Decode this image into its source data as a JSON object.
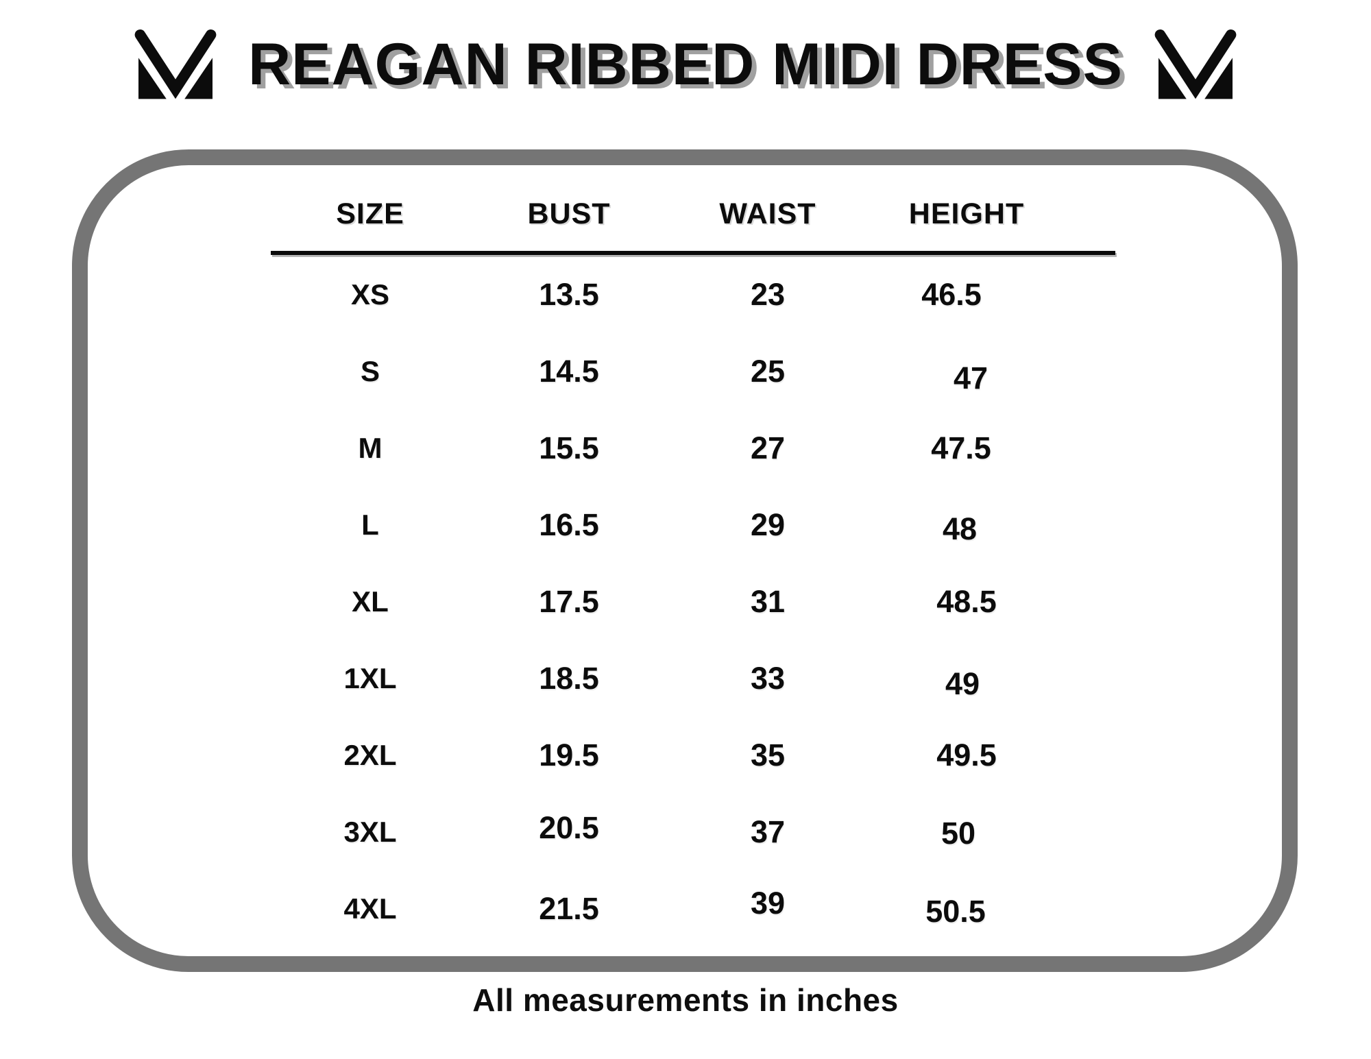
{
  "header": {
    "title": "REAGAN RIBBED MIDI DRESS"
  },
  "chart_data": {
    "type": "table",
    "title": "REAGAN RIBBED MIDI DRESS",
    "columns": [
      "SIZE",
      "BUST",
      "WAIST",
      "HEIGHT"
    ],
    "rows": [
      [
        "XS",
        "13.5",
        "23",
        "46.5"
      ],
      [
        "S",
        "14.5",
        "25",
        "47"
      ],
      [
        "M",
        "15.5",
        "27",
        "47.5"
      ],
      [
        "L",
        "16.5",
        "29",
        "48"
      ],
      [
        "XL",
        "17.5",
        "31",
        "48.5"
      ],
      [
        "1XL",
        "18.5",
        "33",
        "49"
      ],
      [
        "2XL",
        "19.5",
        "35",
        "49.5"
      ],
      [
        "3XL",
        "20.5",
        "37",
        "50"
      ],
      [
        "4XL",
        "21.5",
        "39",
        "50.5"
      ]
    ],
    "units_note": "All measurements in inches"
  },
  "footnote": "All measurements in inches",
  "colors": {
    "text": "#0c0c0c",
    "frame_border": "#757575",
    "title_shadow": "#a0a0a0",
    "rule_shadow": "#b5b5b5"
  }
}
